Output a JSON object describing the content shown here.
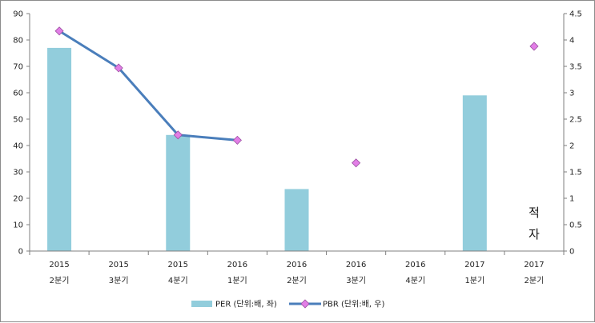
{
  "chart_data": {
    "type": "bar",
    "categories": [
      [
        "2015",
        "2분기"
      ],
      [
        "2015",
        "3분기"
      ],
      [
        "2015",
        "4분기"
      ],
      [
        "2016",
        "1분기"
      ],
      [
        "2016",
        "2분기"
      ],
      [
        "2016",
        "3분기"
      ],
      [
        "2016",
        "4분기"
      ],
      [
        "2017",
        "1분기"
      ],
      [
        "2017",
        "2분기"
      ]
    ],
    "ylim": [
      0,
      90
    ],
    "y_ticks": [
      0,
      10,
      20,
      30,
      40,
      50,
      60,
      70,
      80,
      90
    ],
    "y2lim": [
      0,
      4.5
    ],
    "y2_ticks": [
      0,
      0.5,
      1,
      1.5,
      2,
      2.5,
      3,
      3.5,
      4,
      4.5
    ],
    "series": [
      {
        "name": "PER (단위:배, 좌)",
        "type": "bar",
        "axis": "left",
        "color": "#92cddc",
        "values": [
          77,
          null,
          44,
          null,
          23.5,
          null,
          null,
          59,
          null
        ]
      },
      {
        "name": "PBR (단위:배, 우)",
        "type": "line",
        "axis": "right",
        "color": "#4a7ebb",
        "marker_color": "#e27ee6",
        "values": [
          4.17,
          3.47,
          2.2,
          2.1,
          null,
          1.67,
          null,
          null,
          3.88
        ],
        "connected_segments": [
          [
            0,
            3
          ]
        ]
      }
    ],
    "annotations": [
      {
        "text": "적",
        "category_index": 8
      },
      {
        "text": "자",
        "category_index": 8
      }
    ],
    "legend_position": "bottom",
    "grid": false
  }
}
